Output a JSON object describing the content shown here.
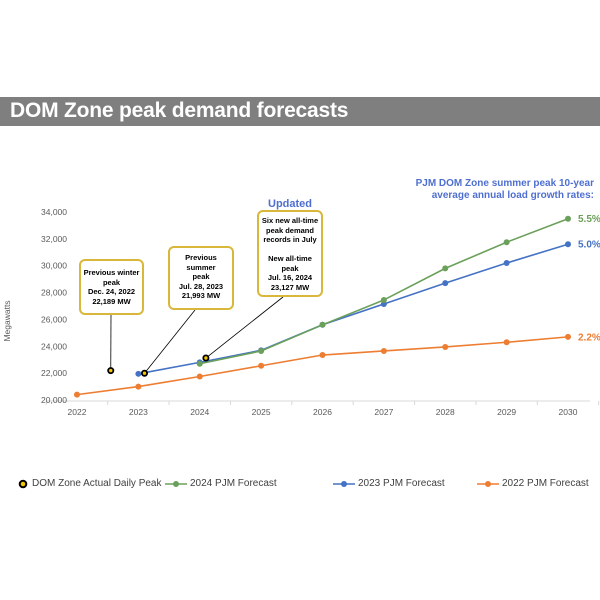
{
  "header": {
    "title": "DOM Zone peak demand forecasts"
  },
  "annotations": {
    "updated_label": "Updated",
    "growth_note_line1": "PJM DOM Zone summer peak 10-year",
    "growth_note_line2": "average annual load growth rates:",
    "callouts": [
      {
        "lines": [
          "Previous winter",
          "peak",
          "Dec. 24, 2022",
          "22,189 MW"
        ]
      },
      {
        "lines": [
          "Previous",
          "summer",
          "peak",
          "Jul. 28, 2023",
          "21,993 MW"
        ]
      },
      {
        "lines": [
          "Six new all-time",
          "peak demand",
          "records in July",
          "",
          "New all-time",
          "peak",
          "Jul. 16, 2024",
          "23,127 MW"
        ]
      }
    ]
  },
  "chart_data": {
    "type": "line",
    "title": "DOM Zone peak demand forecasts",
    "xlabel": "",
    "ylabel": "Megawatts",
    "x": [
      2022,
      2023,
      2024,
      2025,
      2026,
      2027,
      2028,
      2029,
      2030
    ],
    "xlim": [
      2022,
      2030
    ],
    "ylim": [
      20000,
      34000
    ],
    "yticks": [
      20000,
      22000,
      24000,
      26000,
      28000,
      30000,
      32000,
      34000
    ],
    "ytick_labels": [
      "20,000",
      "22,000",
      "24,000",
      "26,000",
      "28,000",
      "30,000",
      "32,000",
      "34,000"
    ],
    "xtick_labels": [
      "2022",
      "2023",
      "2024",
      "2025",
      "2026",
      "2027",
      "2028",
      "2029",
      "2030"
    ],
    "grid": false,
    "legend_position": "bottom",
    "series": [
      {
        "name": "2024 PJM Forecast",
        "color": "#6aa05a",
        "x": [
          2024,
          2025,
          2026,
          2027,
          2028,
          2029,
          2030
        ],
        "values": [
          22700,
          23650,
          25600,
          27450,
          29800,
          31750,
          33500
        ],
        "end_label": "5.5%"
      },
      {
        "name": "2023 PJM Forecast",
        "color": "#4472c4",
        "x": [
          2023,
          2024,
          2025,
          2026,
          2027,
          2028,
          2029,
          2030
        ],
        "values": [
          21950,
          22800,
          23700,
          25600,
          27150,
          28700,
          30200,
          31600
        ],
        "end_label": "5.0%"
      },
      {
        "name": "2022 PJM Forecast",
        "color": "#ed7d31",
        "x": [
          2022,
          2023,
          2024,
          2025,
          2026,
          2027,
          2028,
          2029,
          2030
        ],
        "values": [
          20400,
          21000,
          21750,
          22550,
          23350,
          23650,
          23950,
          24300,
          24700
        ],
        "end_label": "2.2%"
      }
    ],
    "actual_peaks": {
      "name": "DOM Zone Actual Daily Peak",
      "color": "#f2c500",
      "points": [
        {
          "x": 2022.55,
          "value": 22189,
          "label": "Dec. 24, 2022"
        },
        {
          "x": 2023.1,
          "value": 21993,
          "label": "Jul. 28, 2023"
        },
        {
          "x": 2024.1,
          "value": 23127,
          "label": "Jul. 16, 2024"
        }
      ]
    },
    "legend": [
      "DOM Zone Actual Daily Peak",
      "2024 PJM Forecast",
      "2023 PJM Forecast",
      "2022 PJM Forecast"
    ]
  }
}
